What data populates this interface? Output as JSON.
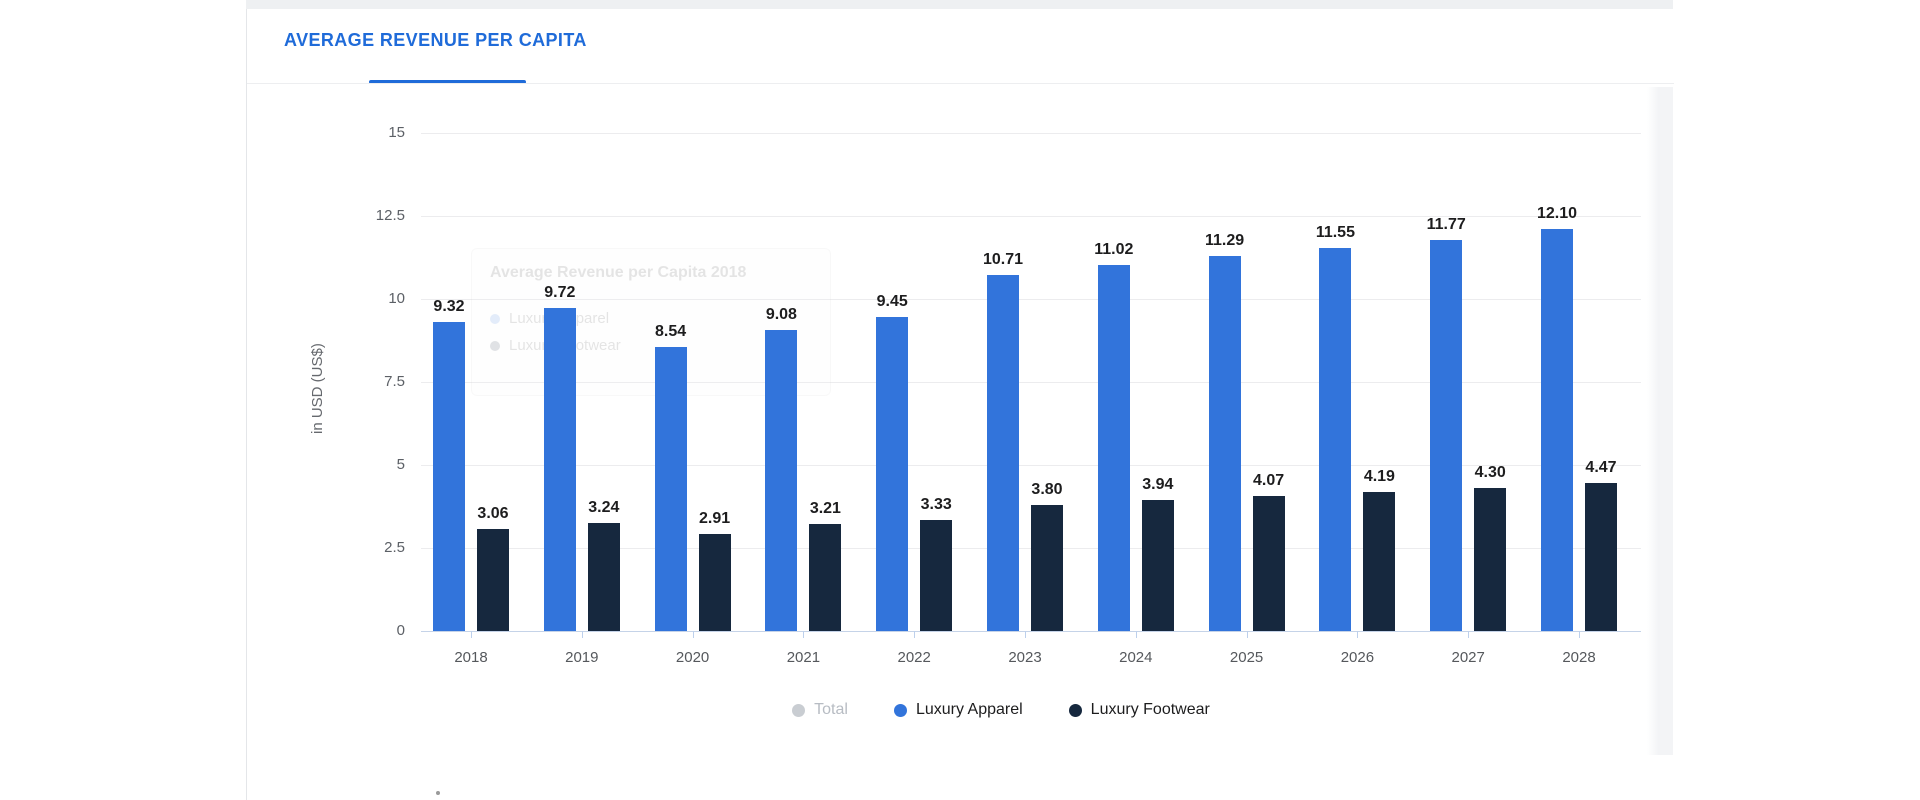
{
  "page": {
    "tab_title": "AVERAGE REVENUE PER CAPITA"
  },
  "chart_data": {
    "type": "bar",
    "title": "AVERAGE REVENUE PER CAPITA",
    "xlabel": "",
    "ylabel": "in USD (US$)",
    "ylim": [
      0,
      15
    ],
    "yticks": [
      15,
      12.5,
      10,
      7.5,
      5,
      2.5,
      0
    ],
    "grid": true,
    "legend_position": "bottom",
    "categories": [
      "2018",
      "2019",
      "2020",
      "2021",
      "2022",
      "2023",
      "2024",
      "2025",
      "2026",
      "2027",
      "2028"
    ],
    "series": [
      {
        "name": "Total",
        "color": "#c9cdd2",
        "disabled": true,
        "values": []
      },
      {
        "name": "Luxury Apparel",
        "color": "#3274db",
        "disabled": false,
        "values": [
          9.32,
          9.72,
          8.54,
          9.08,
          9.45,
          10.71,
          11.02,
          11.29,
          11.55,
          11.77,
          12.1
        ]
      },
      {
        "name": "Luxury Footwear",
        "color": "#16283e",
        "disabled": false,
        "values": [
          3.06,
          3.24,
          2.91,
          3.21,
          3.33,
          3.8,
          3.94,
          4.07,
          4.19,
          4.3,
          4.47
        ]
      }
    ]
  },
  "ghost_tooltip": {
    "title": "Average Revenue per Capita 2018",
    "items": [
      {
        "label": "Luxury Apparel",
        "color": "#3274db"
      },
      {
        "label": "Luxury Footwear",
        "color": "#16283e"
      }
    ]
  },
  "colors": {
    "accent_blue": "#1f6bd9",
    "bar_blue": "#3274db",
    "bar_navy": "#16283e",
    "disabled_gray": "#c9cdd2"
  }
}
